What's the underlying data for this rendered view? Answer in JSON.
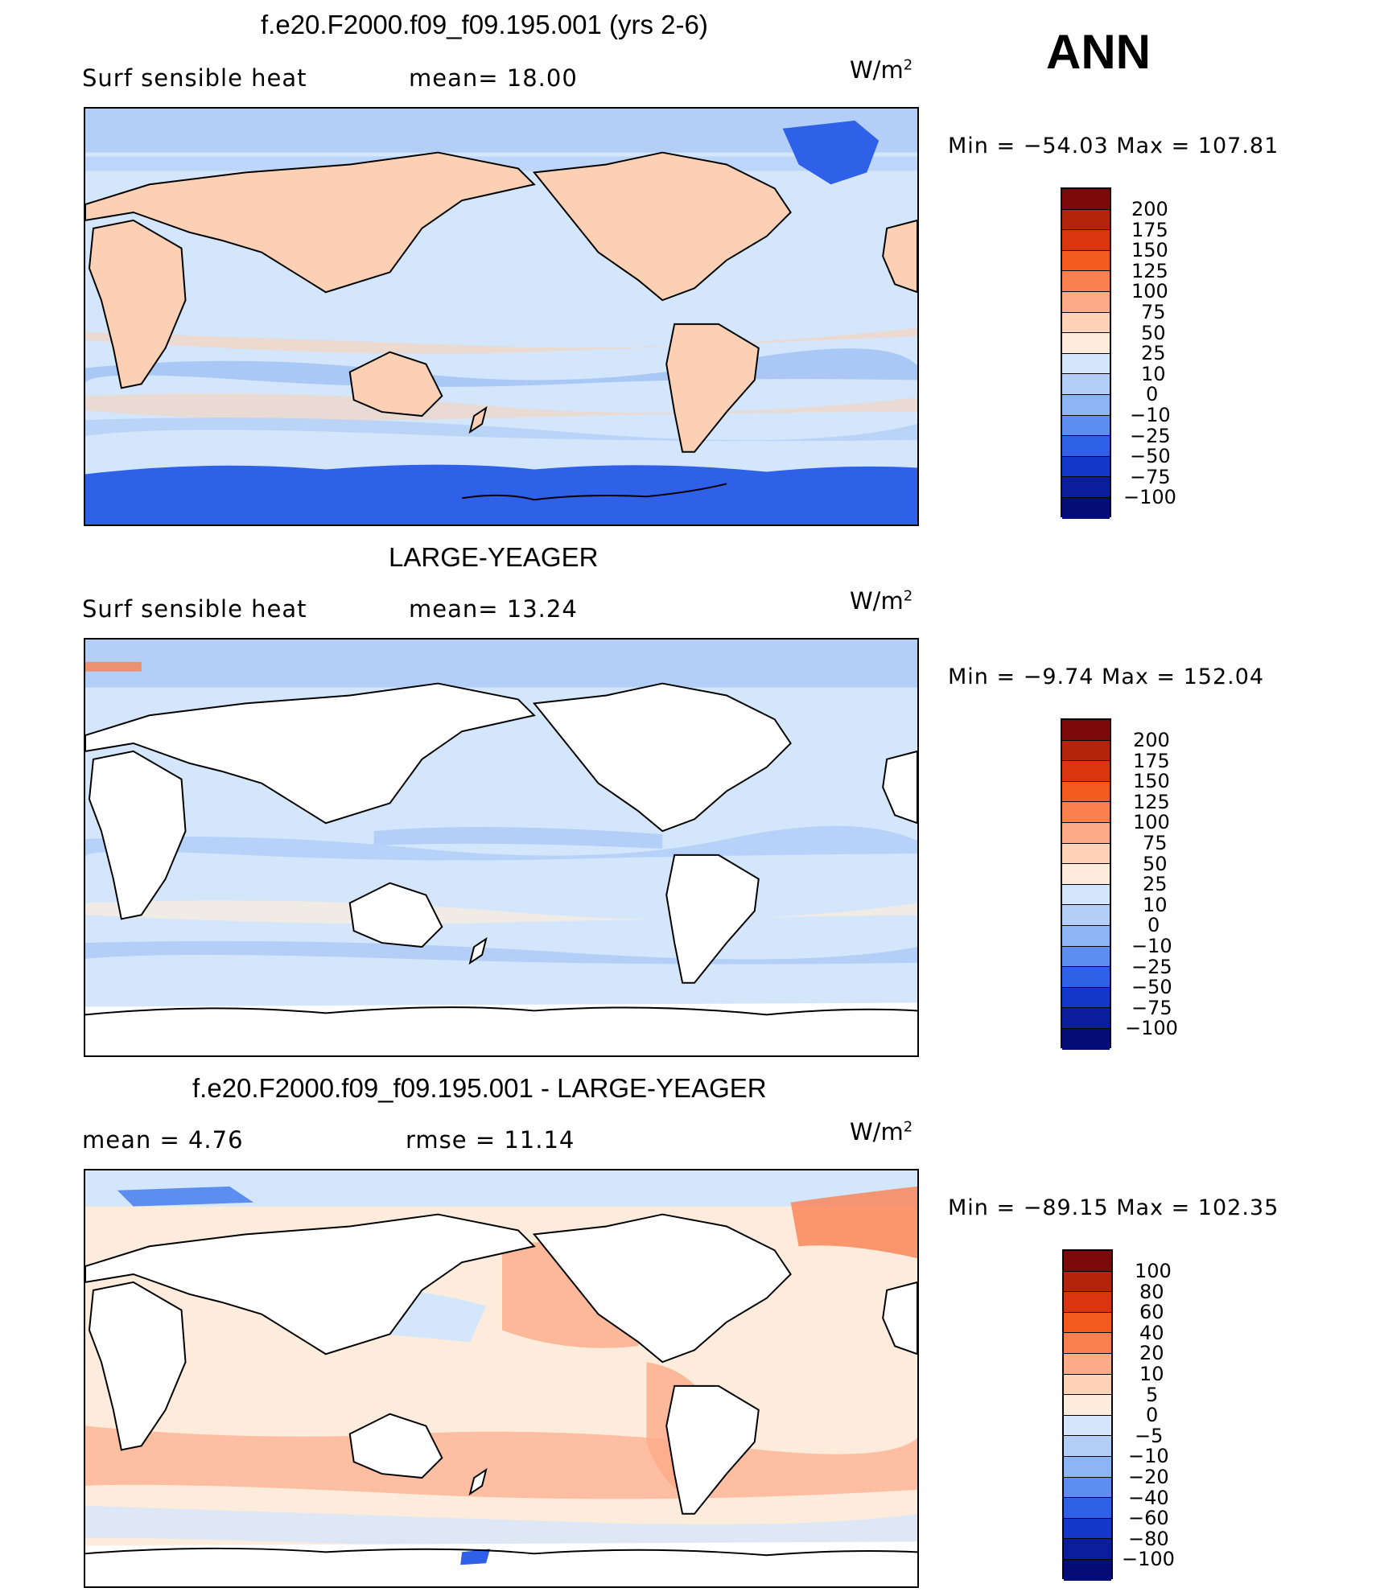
{
  "season": "ANN",
  "units": {
    "base": "W/m",
    "sup": "2"
  },
  "panels": [
    {
      "title": "f.e20.F2000.f09_f09.195.001 (yrs 2-6)",
      "left_label": "Surf  sensible  heat",
      "stat1": "mean=   18.00",
      "stat2": "",
      "minmax": "Min  =  −54.03  Max  =  107.81",
      "levels": [
        "200",
        "175",
        "150",
        "125",
        "100",
        "75",
        "50",
        "25",
        "10",
        "0",
        "−10",
        "−25",
        "−50",
        "−75",
        "−100"
      ],
      "colors": [
        "#7d0a0a",
        "#b3240c",
        "#d9360f",
        "#f25a1e",
        "#fa8050",
        "#fcab88",
        "#fed3b8",
        "#fdecdc",
        "#d4e6fb",
        "#b3cff8",
        "#8db4f4",
        "#5b8eee",
        "#2f60e8",
        "#1337c8",
        "#0a1e9c",
        "#050e78"
      ]
    },
    {
      "title": "LARGE-YEAGER",
      "left_label": "Surf  sensible  heat",
      "stat1": "mean=   13.24",
      "stat2": "",
      "minmax": "Min  =   −9.74  Max  =  152.04",
      "levels": [
        "200",
        "175",
        "150",
        "125",
        "100",
        "75",
        "50",
        "25",
        "10",
        "0",
        "−10",
        "−25",
        "−50",
        "−75",
        "−100"
      ],
      "colors": [
        "#7d0a0a",
        "#b3240c",
        "#d9360f",
        "#f25a1e",
        "#fa8050",
        "#fcab88",
        "#fed3b8",
        "#fdecdc",
        "#d4e6fb",
        "#b3cff8",
        "#8db4f4",
        "#5b8eee",
        "#2f60e8",
        "#1337c8",
        "#0a1e9c",
        "#050e78"
      ]
    },
    {
      "title": "f.e20.F2000.f09_f09.195.001 - LARGE-YEAGER",
      "left_label": "mean  =     4.76",
      "stat1": "rmse  =    11.14",
      "stat2": "",
      "minmax": "Min  =  −89.15  Max  =  102.35",
      "levels": [
        "100",
        "80",
        "60",
        "40",
        "20",
        "10",
        "5",
        "0",
        "−5",
        "−10",
        "−20",
        "−40",
        "−60",
        "−80",
        "−100"
      ],
      "colors": [
        "#7d0a0a",
        "#b3240c",
        "#d9360f",
        "#f25a1e",
        "#fa8050",
        "#fcab88",
        "#fed3b8",
        "#fdecdc",
        "#d4e6fb",
        "#b3cff8",
        "#8db4f4",
        "#5b8eee",
        "#2f60e8",
        "#1337c8",
        "#0a1e9c",
        "#050e78"
      ]
    }
  ],
  "map_colors": {
    "ocean_p1": "#d4e6fb",
    "ocean_p2": "#d4e6fb",
    "ocean_p3": "#fdecdc",
    "land_p1": "#fcd0b4",
    "ice_p1": "#2f60e8",
    "band_blue": "#b3cff8",
    "band_blue2": "#8db4f4",
    "band_red": "#fcab88",
    "land_blank": "#ffffff"
  }
}
